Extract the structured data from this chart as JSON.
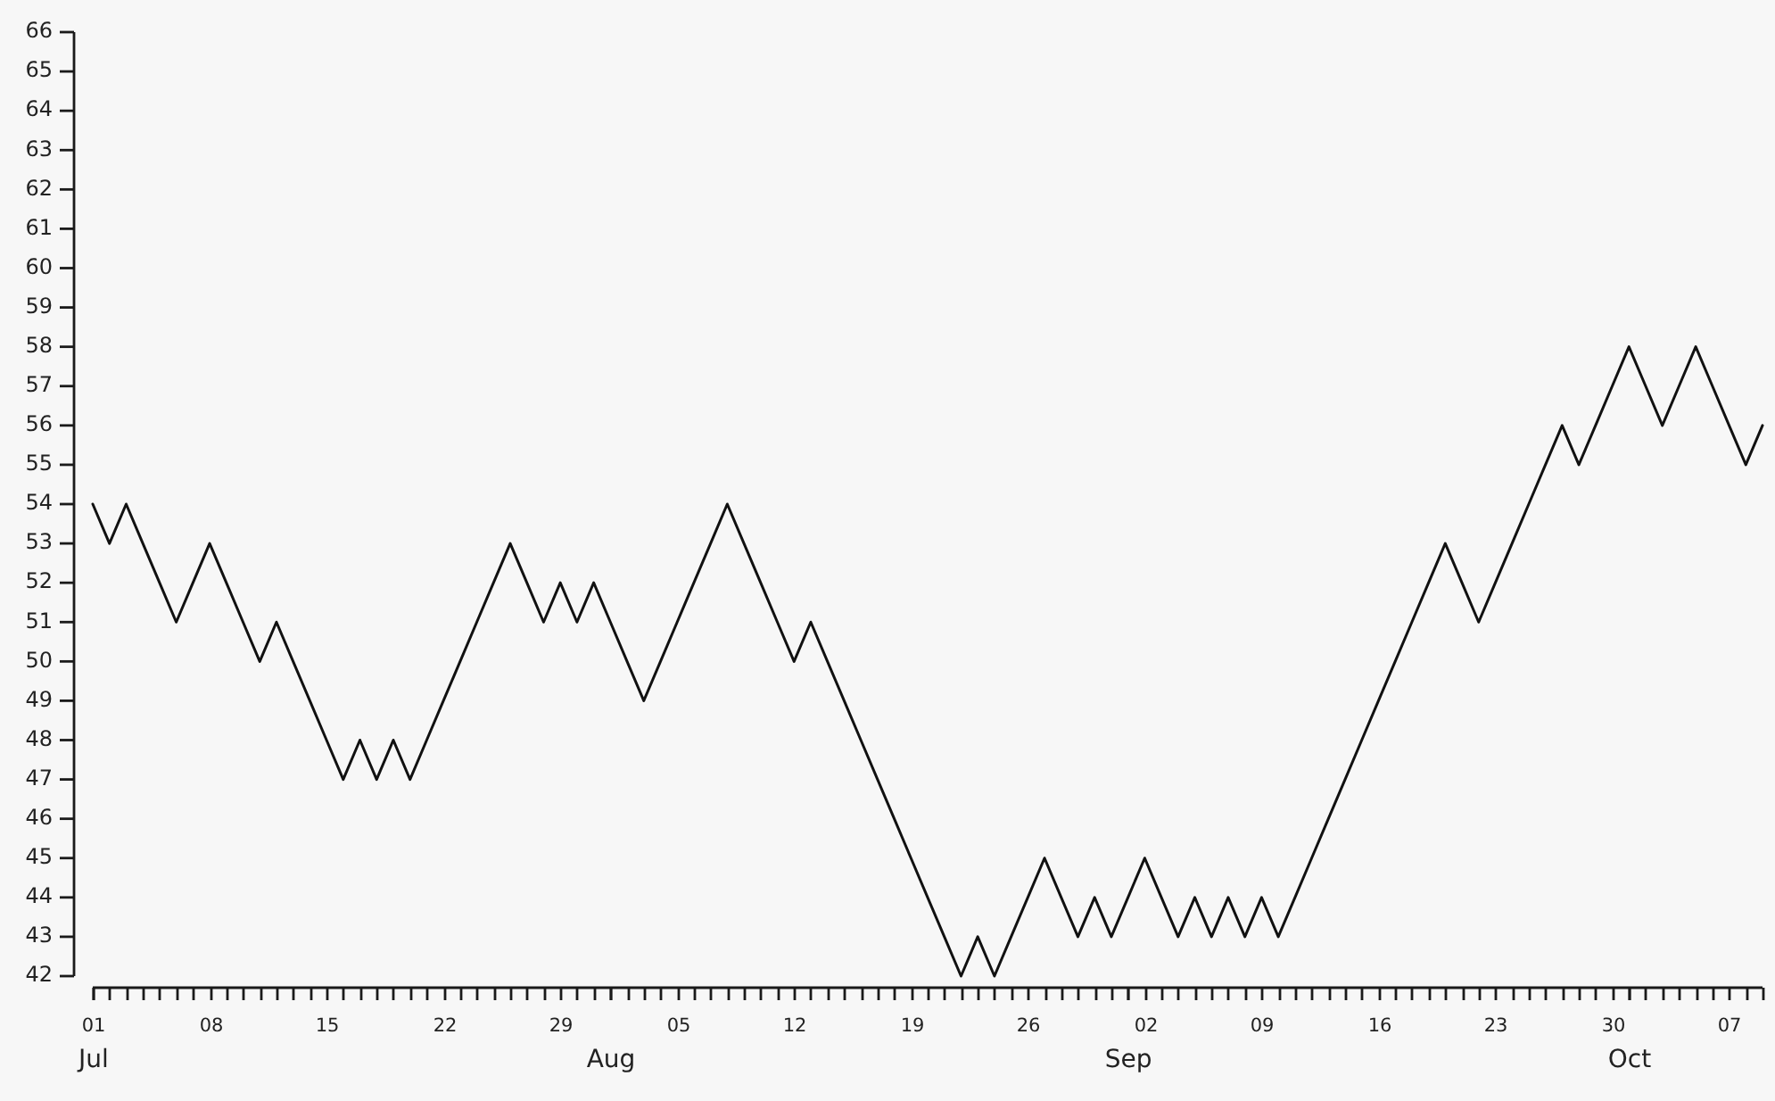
{
  "chart_data": {
    "type": "line",
    "color": "#111111",
    "x": [
      "--07-01",
      "--07-02",
      "--07-03",
      "--07-04",
      "--07-05",
      "--07-06",
      "--07-07",
      "--07-08",
      "--07-09",
      "--07-10",
      "--07-11",
      "--07-12",
      "--07-13",
      "--07-14",
      "--07-15",
      "--07-16",
      "--07-17",
      "--07-18",
      "--07-19",
      "--07-20",
      "--07-21",
      "--07-22",
      "--07-23",
      "--07-24",
      "--07-25",
      "--07-26",
      "--07-27",
      "--07-28",
      "--07-29",
      "--07-30",
      "--07-31",
      "--08-01",
      "--08-02",
      "--08-03",
      "--08-04",
      "--08-05",
      "--08-06",
      "--08-07",
      "--08-08",
      "--08-09",
      "--08-10",
      "--08-11",
      "--08-12",
      "--08-13",
      "--08-14",
      "--08-15",
      "--08-16",
      "--08-17",
      "--08-18",
      "--08-19",
      "--08-20",
      "--08-21",
      "--08-22",
      "--08-23",
      "--08-24",
      "--08-25",
      "--08-26",
      "--08-27",
      "--08-28",
      "--08-29",
      "--08-30",
      "--08-31",
      "--09-01",
      "--09-02",
      "--09-03",
      "--09-04",
      "--09-05",
      "--09-06",
      "--09-07",
      "--09-08",
      "--09-09",
      "--09-10",
      "--09-11",
      "--09-12",
      "--09-13",
      "--09-14",
      "--09-15",
      "--09-16",
      "--09-17",
      "--09-18",
      "--09-19",
      "--09-20",
      "--09-21",
      "--09-22",
      "--09-23",
      "--09-24",
      "--09-25",
      "--09-26",
      "--09-27",
      "--09-28",
      "--09-29",
      "--09-30",
      "--10-01",
      "--10-02",
      "--10-03",
      "--10-04",
      "--10-05",
      "--10-06",
      "--10-07",
      "--10-08",
      "--10-09"
    ],
    "values": [
      54,
      53,
      54,
      53,
      52,
      51,
      52,
      53,
      52,
      51,
      50,
      51,
      50,
      49,
      48,
      47,
      48,
      47,
      48,
      47,
      48,
      49,
      50,
      51,
      52,
      53,
      52,
      51,
      52,
      51,
      52,
      51,
      50,
      49,
      50,
      51,
      52,
      53,
      54,
      53,
      52,
      51,
      50,
      51,
      50,
      49,
      48,
      47,
      46,
      45,
      44,
      43,
      42,
      43,
      42,
      43,
      44,
      45,
      44,
      43,
      44,
      43,
      44,
      45,
      44,
      43,
      44,
      43,
      44,
      43,
      44,
      43,
      44,
      45,
      46,
      47,
      48,
      49,
      50,
      51,
      52,
      53,
      52,
      51,
      52,
      53,
      54,
      55,
      56,
      55,
      56,
      57,
      58,
      57,
      56,
      57,
      58,
      57,
      56,
      55,
      56
    ],
    "xlim": [
      "--07-01",
      "--10-09"
    ],
    "xticks": [
      {
        "value": "--07-01",
        "label": "01"
      },
      {
        "value": "--07-02",
        "label": null
      },
      {
        "value": "--07-03",
        "label": null
      },
      {
        "value": "--07-04",
        "label": null
      },
      {
        "value": "--07-05",
        "label": null
      },
      {
        "value": "--07-06",
        "label": null
      },
      {
        "value": "--07-07",
        "label": null
      },
      {
        "value": "--07-08",
        "label": "08"
      },
      {
        "value": "--07-09",
        "label": null
      },
      {
        "value": "--07-10",
        "label": null
      },
      {
        "value": "--07-11",
        "label": null
      },
      {
        "value": "--07-12",
        "label": null
      },
      {
        "value": "--07-13",
        "label": null
      },
      {
        "value": "--07-14",
        "label": null
      },
      {
        "value": "--07-15",
        "label": "15"
      },
      {
        "value": "--07-16",
        "label": null
      },
      {
        "value": "--07-17",
        "label": null
      },
      {
        "value": "--07-18",
        "label": null
      },
      {
        "value": "--07-19",
        "label": null
      },
      {
        "value": "--07-20",
        "label": null
      },
      {
        "value": "--07-21",
        "label": null
      },
      {
        "value": "--07-22",
        "label": "22"
      },
      {
        "value": "--07-23",
        "label": null
      },
      {
        "value": "--07-24",
        "label": null
      },
      {
        "value": "--07-25",
        "label": null
      },
      {
        "value": "--07-26",
        "label": null
      },
      {
        "value": "--07-27",
        "label": null
      },
      {
        "value": "--07-28",
        "label": null
      },
      {
        "value": "--07-29",
        "label": "29"
      },
      {
        "value": "--07-30",
        "label": null
      },
      {
        "value": "--07-31",
        "label": null
      },
      {
        "value": "--08-01",
        "label": null
      },
      {
        "value": "--08-02",
        "label": null
      },
      {
        "value": "--08-03",
        "label": null
      },
      {
        "value": "--08-04",
        "label": null
      },
      {
        "value": "--08-05",
        "label": "05"
      },
      {
        "value": "--08-06",
        "label": null
      },
      {
        "value": "--08-07",
        "label": null
      },
      {
        "value": "--08-08",
        "label": null
      },
      {
        "value": "--08-09",
        "label": null
      },
      {
        "value": "--08-10",
        "label": null
      },
      {
        "value": "--08-11",
        "label": null
      },
      {
        "value": "--08-12",
        "label": "12"
      },
      {
        "value": "--08-13",
        "label": null
      },
      {
        "value": "--08-14",
        "label": null
      },
      {
        "value": "--08-15",
        "label": null
      },
      {
        "value": "--08-16",
        "label": null
      },
      {
        "value": "--08-17",
        "label": null
      },
      {
        "value": "--08-18",
        "label": null
      },
      {
        "value": "--08-19",
        "label": "19"
      },
      {
        "value": "--08-20",
        "label": null
      },
      {
        "value": "--08-21",
        "label": null
      },
      {
        "value": "--08-22",
        "label": null
      },
      {
        "value": "--08-23",
        "label": null
      },
      {
        "value": "--08-24",
        "label": null
      },
      {
        "value": "--08-25",
        "label": null
      },
      {
        "value": "--08-26",
        "label": "26"
      },
      {
        "value": "--08-27",
        "label": null
      },
      {
        "value": "--08-28",
        "label": null
      },
      {
        "value": "--08-29",
        "label": null
      },
      {
        "value": "--08-30",
        "label": null
      },
      {
        "value": "--08-31",
        "label": null
      },
      {
        "value": "--09-01",
        "label": null
      },
      {
        "value": "--09-02",
        "label": "02"
      },
      {
        "value": "--09-03",
        "label": null
      },
      {
        "value": "--09-04",
        "label": null
      },
      {
        "value": "--09-05",
        "label": null
      },
      {
        "value": "--09-06",
        "label": null
      },
      {
        "value": "--09-07",
        "label": null
      },
      {
        "value": "--09-08",
        "label": null
      },
      {
        "value": "--09-09",
        "label": "09"
      },
      {
        "value": "--09-10",
        "label": null
      },
      {
        "value": "--09-11",
        "label": null
      },
      {
        "value": "--09-12",
        "label": null
      },
      {
        "value": "--09-13",
        "label": null
      },
      {
        "value": "--09-14",
        "label": null
      },
      {
        "value": "--09-15",
        "label": null
      },
      {
        "value": "--09-16",
        "label": "16"
      },
      {
        "value": "--09-17",
        "label": null
      },
      {
        "value": "--09-18",
        "label": null
      },
      {
        "value": "--09-19",
        "label": null
      },
      {
        "value": "--09-20",
        "label": null
      },
      {
        "value": "--09-21",
        "label": null
      },
      {
        "value": "--09-22",
        "label": null
      },
      {
        "value": "--09-23",
        "label": "23"
      },
      {
        "value": "--09-24",
        "label": null
      },
      {
        "value": "--09-25",
        "label": null
      },
      {
        "value": "--09-26",
        "label": null
      },
      {
        "value": "--09-27",
        "label": null
      },
      {
        "value": "--09-28",
        "label": null
      },
      {
        "value": "--09-29",
        "label": null
      },
      {
        "value": "--09-30",
        "label": "30"
      },
      {
        "value": "--10-01",
        "label": null
      },
      {
        "value": "--10-02",
        "label": null
      },
      {
        "value": "--10-03",
        "label": null
      },
      {
        "value": "--10-04",
        "label": null
      },
      {
        "value": "--10-05",
        "label": null
      },
      {
        "value": "--10-06",
        "label": null
      },
      {
        "value": "--10-07",
        "label": "07"
      },
      {
        "value": "--10-08",
        "label": null
      },
      {
        "value": "--10-09",
        "label": null
      }
    ],
    "x2lim": [
      "--07-01",
      "--10-09"
    ],
    "x2ticks": [
      {
        "value": "--07-01",
        "label": "Jul"
      },
      {
        "value": "--08-01",
        "label": "Aug"
      },
      {
        "value": "--09-01",
        "label": "Sep"
      },
      {
        "value": "--10-01",
        "label": "Oct"
      }
    ],
    "ylim": [
      42,
      66
    ],
    "yticks": [
      42,
      43,
      44,
      45,
      46,
      47,
      48,
      49,
      50,
      51,
      52,
      53,
      54,
      55,
      56,
      57,
      58,
      59,
      60,
      61,
      62,
      63,
      64,
      65,
      66
    ]
  }
}
